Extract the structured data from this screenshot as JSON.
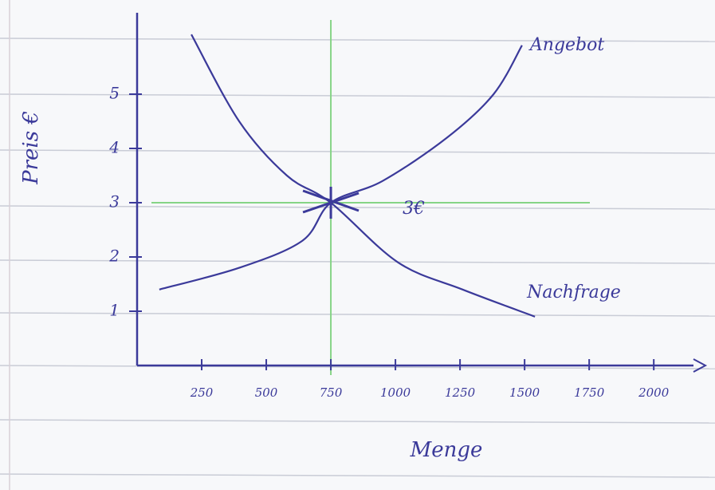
{
  "chart_data": {
    "type": "line",
    "x_label": "Menge",
    "y_label": "Preis €",
    "xlim": [
      0,
      2200
    ],
    "ylim": [
      0,
      6.5
    ],
    "xticks": [
      250,
      500,
      750,
      1000,
      1250,
      1500,
      1750,
      2000
    ],
    "yticks": [
      1,
      2,
      3,
      4,
      5
    ],
    "series": [
      {
        "name": "Angebot",
        "color": "#3b3a9a",
        "x": [
          86,
          395,
          640,
          750,
          950,
          1200,
          1380,
          1490
        ],
        "values": [
          1.4,
          1.8,
          2.3,
          3,
          3.4,
          4.2,
          5.0,
          5.9
        ]
      },
      {
        "name": "Nachfrage",
        "color": "#3b3a9a",
        "x": [
          210,
          395,
          580,
          750,
          1010,
          1260,
          1540
        ],
        "values": [
          6.1,
          4.5,
          3.5,
          3,
          1.9,
          1.4,
          0.9
        ]
      }
    ],
    "reference_lines": {
      "color": "#86d486",
      "x": 750,
      "y": 3
    },
    "annotations": [
      "3€"
    ]
  }
}
